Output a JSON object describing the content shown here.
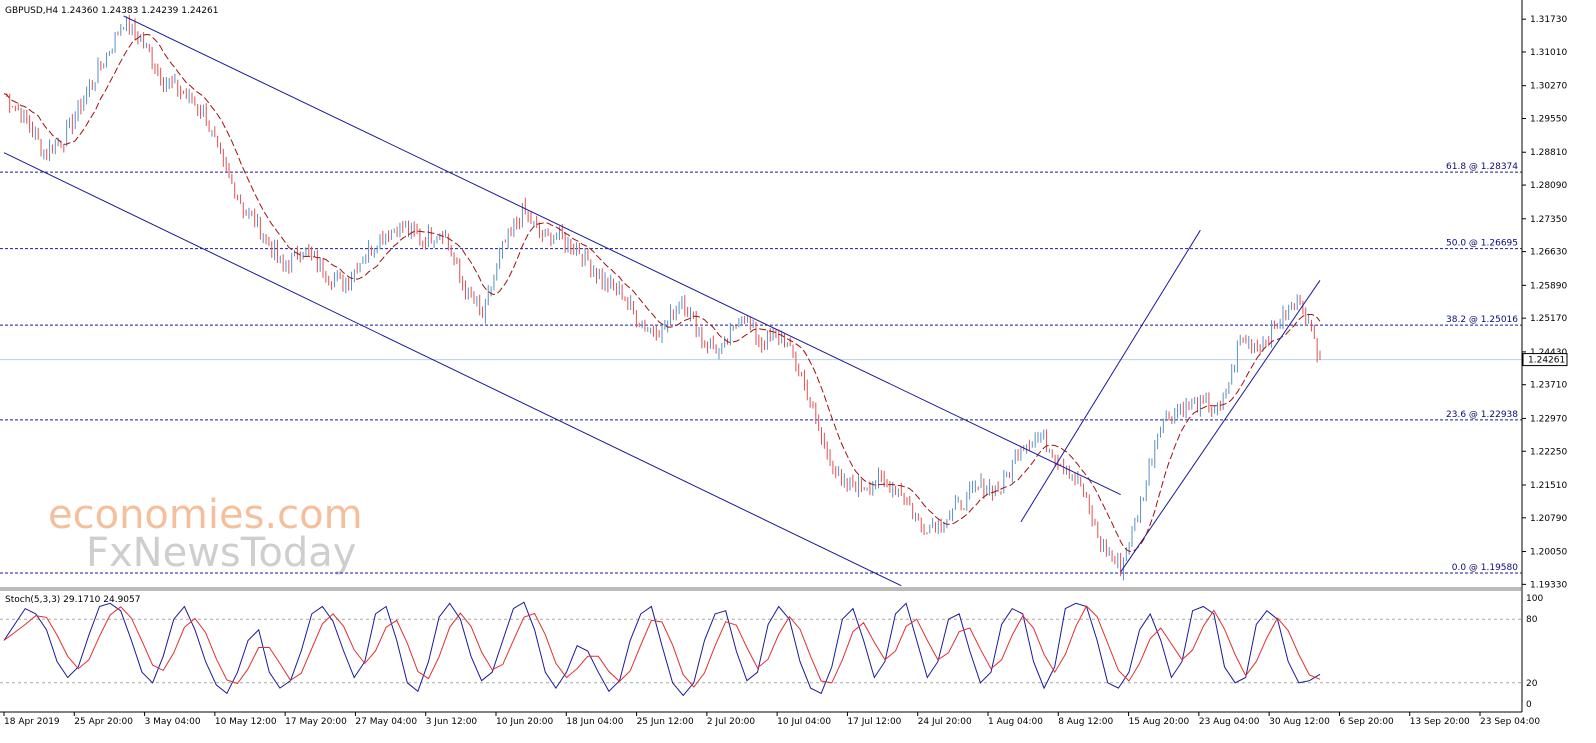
{
  "chart_data": {
    "type": "candlestick",
    "symbol_header": "GBPUSD,H4  1.24360 1.24383 1.24239 1.24261",
    "current_price": 1.24261,
    "current_price_label": "1.24261",
    "ylim": [
      1.1925,
      1.3215
    ],
    "y_ticks": [
      "1.31730",
      "1.31010",
      "1.30270",
      "1.29550",
      "1.28810",
      "1.28090",
      "1.27350",
      "1.26630",
      "1.25890",
      "1.25170",
      "1.24430",
      "1.23710",
      "1.22970",
      "1.22250",
      "1.21510",
      "1.20790",
      "1.20050",
      "1.19330"
    ],
    "x_ticks": [
      "18 Apr 2019",
      "25 Apr 20:00",
      "3 May 04:00",
      "10 May 12:00",
      "17 May 20:00",
      "27 May 04:00",
      "3 Jun 12:00",
      "10 Jun 20:00",
      "18 Jun 04:00",
      "25 Jun 12:00",
      "2 Jul 20:00",
      "10 Jul 04:00",
      "17 Jul 12:00",
      "24 Jul 20:00",
      "1 Aug 04:00",
      "8 Aug 12:00",
      "15 Aug 20:00",
      "23 Aug 04:00",
      "30 Aug 12:00",
      "6 Sep 20:00",
      "13 Sep 20:00",
      "23 Sep 04:00"
    ],
    "price_path": [
      {
        "date": "18 Apr 2019",
        "close": 1.301
      },
      {
        "date": "22 Apr",
        "close": 1.296
      },
      {
        "date": "24 Apr",
        "close": 1.288
      },
      {
        "date": "25 Apr 20:00",
        "close": 1.291
      },
      {
        "date": "29 Apr",
        "close": 1.3
      },
      {
        "date": "1 May",
        "close": 1.308
      },
      {
        "date": "3 May 04:00",
        "close": 1.317
      },
      {
        "date": "6 May",
        "close": 1.312
      },
      {
        "date": "8 May",
        "close": 1.304
      },
      {
        "date": "10 May 12:00",
        "close": 1.301
      },
      {
        "date": "14 May",
        "close": 1.297
      },
      {
        "date": "16 May",
        "close": 1.285
      },
      {
        "date": "17 May 20:00",
        "close": 1.276
      },
      {
        "date": "21 May",
        "close": 1.27
      },
      {
        "date": "23 May",
        "close": 1.263
      },
      {
        "date": "27 May 04:00",
        "close": 1.267
      },
      {
        "date": "29 May",
        "close": 1.262
      },
      {
        "date": "31 May",
        "close": 1.259
      },
      {
        "date": "3 Jun 12:00",
        "close": 1.265
      },
      {
        "date": "5 Jun",
        "close": 1.27
      },
      {
        "date": "7 Jun",
        "close": 1.272
      },
      {
        "date": "10 Jun 20:00",
        "close": 1.269
      },
      {
        "date": "12 Jun",
        "close": 1.271
      },
      {
        "date": "14 Jun",
        "close": 1.259
      },
      {
        "date": "18 Jun 04:00",
        "close": 1.252
      },
      {
        "date": "20 Jun",
        "close": 1.267
      },
      {
        "date": "22 Jun",
        "close": 1.275
      },
      {
        "date": "25 Jun 12:00",
        "close": 1.27
      },
      {
        "date": "27 Jun",
        "close": 1.269
      },
      {
        "date": "29 Jun",
        "close": 1.266
      },
      {
        "date": "2 Jul 20:00",
        "close": 1.26
      },
      {
        "date": "4 Jul",
        "close": 1.257
      },
      {
        "date": "6 Jul",
        "close": 1.25
      },
      {
        "date": "10 Jul 04:00",
        "close": 1.249
      },
      {
        "date": "12 Jul",
        "close": 1.256
      },
      {
        "date": "15 Jul",
        "close": 1.247
      },
      {
        "date": "17 Jul 12:00",
        "close": 1.244
      },
      {
        "date": "19 Jul",
        "close": 1.253
      },
      {
        "date": "22 Jul",
        "close": 1.246
      },
      {
        "date": "24 Jul 20:00",
        "close": 1.248
      },
      {
        "date": "26 Jul",
        "close": 1.239
      },
      {
        "date": "29 Jul",
        "close": 1.225
      },
      {
        "date": "1 Aug 04:00",
        "close": 1.215
      },
      {
        "date": "3 Aug",
        "close": 1.215
      },
      {
        "date": "6 Aug",
        "close": 1.216
      },
      {
        "date": "8 Aug 12:00",
        "close": 1.214
      },
      {
        "date": "11 Aug",
        "close": 1.206
      },
      {
        "date": "13 Aug",
        "close": 1.207
      },
      {
        "date": "15 Aug 20:00",
        "close": 1.211
      },
      {
        "date": "19 Aug",
        "close": 1.215
      },
      {
        "date": "21 Aug",
        "close": 1.214
      },
      {
        "date": "23 Aug 04:00",
        "close": 1.224
      },
      {
        "date": "26 Aug",
        "close": 1.226
      },
      {
        "date": "28 Aug",
        "close": 1.22
      },
      {
        "date": "30 Aug 12:00",
        "close": 1.215
      },
      {
        "date": "2 Sep",
        "close": 1.202
      },
      {
        "date": "3 Sep",
        "close": 1.197
      },
      {
        "date": "4 Sep",
        "close": 1.211
      },
      {
        "date": "5 Sep",
        "close": 1.229
      },
      {
        "date": "6 Sep 20:00",
        "close": 1.232
      },
      {
        "date": "10 Sep",
        "close": 1.233
      },
      {
        "date": "12 Sep",
        "close": 1.231
      },
      {
        "date": "13 Sep 20:00",
        "close": 1.247
      },
      {
        "date": "17 Sep",
        "close": 1.246
      },
      {
        "date": "19 Sep",
        "close": 1.251
      },
      {
        "date": "20 Sep",
        "close": 1.256
      },
      {
        "date": "23 Sep 04:00",
        "close": 1.243
      }
    ],
    "fibonacci": [
      {
        "level": "61.8",
        "price": 1.28374,
        "label": "61.8 @ 1.28374"
      },
      {
        "level": "50.0",
        "price": 1.26695,
        "label": "50.0 @ 1.26695"
      },
      {
        "level": "38.2",
        "price": 1.25016,
        "label": "38.2 @ 1.25016"
      },
      {
        "level": "23.6",
        "price": 1.22938,
        "label": "23.6 @ 1.22938"
      },
      {
        "level": "0.0",
        "price": 1.1958,
        "label": "0.0 @ 1.19580"
      }
    ],
    "trendlines": {
      "downtrend_upper": [
        {
          "date": "3 May 04:00",
          "price": 1.318
        },
        {
          "date": "3 Sep",
          "price": 1.213
        }
      ],
      "downtrend_lower": [
        {
          "date": "18 Apr 2019",
          "price": 1.288
        },
        {
          "date": "8 Aug 12:00",
          "price": 1.193
        }
      ],
      "uptrend_upper": [
        {
          "date": "23 Aug 04:00",
          "price": 1.207
        },
        {
          "date": "10 Sep",
          "price": 1.271
        }
      ],
      "uptrend_lower": [
        {
          "date": "3 Sep",
          "price": 1.196
        },
        {
          "date": "23 Sep 04:00",
          "price": 1.26
        }
      ]
    },
    "indicator": {
      "name": "Stochastic",
      "header": "Stoch(5,3,3) 29.1710 24.9057",
      "k": 29.171,
      "d": 24.9057,
      "ylim": [
        0,
        100
      ],
      "y_ticks": [
        "100",
        "80",
        "20",
        "0"
      ],
      "levels": [
        80,
        20
      ],
      "k_path": [
        60,
        75,
        90,
        85,
        70,
        40,
        25,
        35,
        65,
        92,
        95,
        88,
        60,
        30,
        20,
        45,
        80,
        92,
        70,
        40,
        18,
        10,
        30,
        60,
        70,
        30,
        15,
        22,
        50,
        85,
        92,
        78,
        50,
        25,
        40,
        85,
        92,
        60,
        20,
        12,
        40,
        82,
        95,
        80,
        45,
        22,
        30,
        60,
        90,
        96,
        70,
        30,
        15,
        30,
        55,
        50,
        30,
        12,
        22,
        60,
        85,
        92,
        55,
        20,
        8,
        20,
        60,
        85,
        88,
        50,
        22,
        30,
        75,
        92,
        80,
        40,
        15,
        10,
        35,
        80,
        90,
        60,
        25,
        40,
        85,
        95,
        60,
        25,
        40,
        80,
        85,
        50,
        20,
        30,
        75,
        90,
        85,
        40,
        15,
        35,
        90,
        95,
        92,
        60,
        20,
        15,
        30,
        70,
        85,
        60,
        25,
        40,
        88,
        92,
        85,
        35,
        20,
        25,
        75,
        88,
        80,
        40,
        20,
        22,
        28
      ]
    },
    "colors": {
      "bull": "#5b8fc7",
      "bear": "#e05050",
      "ma": "#a01010",
      "trend": "#1a1a9a",
      "fib": "#1a1a9a",
      "stoch_k": "#1a1a9a",
      "stoch_d": "#e03030",
      "price_line": "#b7d0e6"
    }
  },
  "watermark": {
    "line1": "economies.com",
    "line2": "FxNewsToday"
  }
}
